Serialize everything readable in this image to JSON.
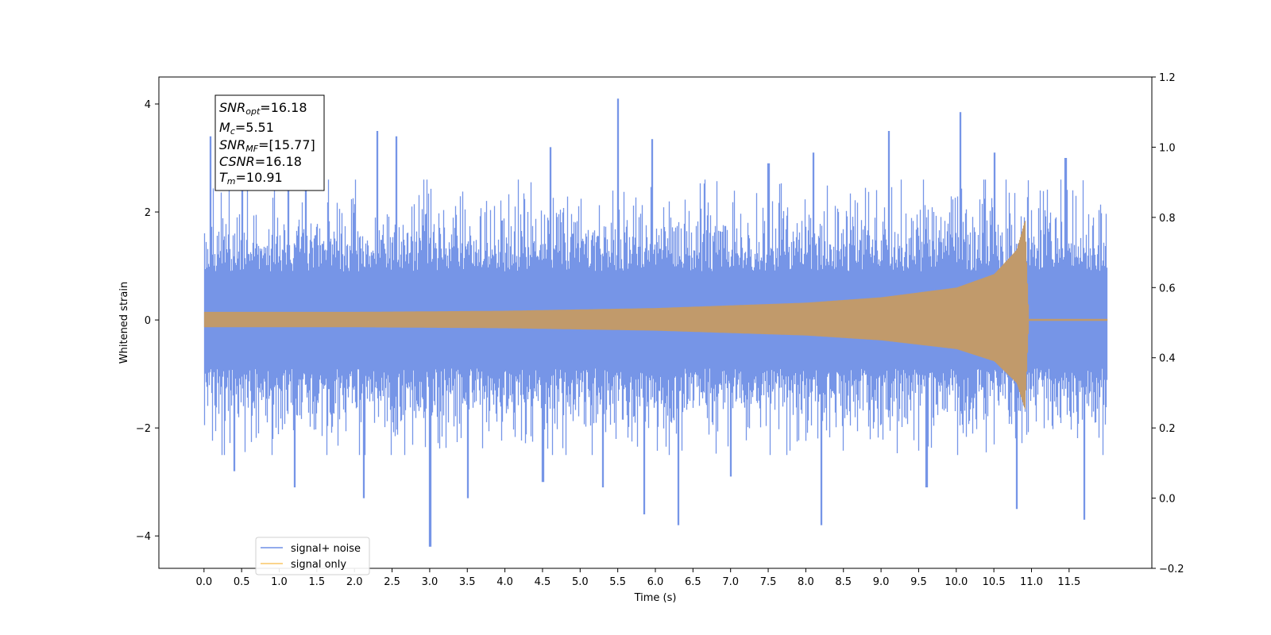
{
  "chart_data": {
    "type": "line",
    "xlabel": "Time (s)",
    "ylabel": "Whitened strain",
    "xlim": [
      -0.6,
      12.6
    ],
    "ylim": [
      -4.6,
      4.5
    ],
    "y2lim": [
      -0.2,
      1.2
    ],
    "xticks": [
      "0.0",
      "0.5",
      "1.0",
      "1.5",
      "2.0",
      "2.5",
      "3.0",
      "3.5",
      "4.0",
      "4.5",
      "5.0",
      "5.5",
      "6.0",
      "6.5",
      "7.0",
      "7.5",
      "8.0",
      "8.5",
      "9.0",
      "9.5",
      "10.0",
      "10.5",
      "11.0",
      "11.5"
    ],
    "yticks": [
      "4",
      "2",
      "0",
      "−2",
      "−4"
    ],
    "y2ticks": [
      "1.2",
      "1.0",
      "0.8",
      "0.6",
      "0.4",
      "0.2",
      "0.0",
      "−0.2"
    ],
    "colors": {
      "noise": "#6f8fe6",
      "signal": "#c19a6b",
      "signal_legend": "#f9c667"
    },
    "series": [
      {
        "name": "signal+ noise",
        "description": "whitened strain, dense noise roughly between -2.5 and 2.5 with peaks up to 4.1 near t=5.5 s and down to -4.2 near t=3.0 s",
        "x_range": [
          0.0,
          12.0
        ],
        "typical_band": [
          -2.2,
          2.3
        ],
        "peaks": [
          {
            "x": 0.08,
            "y": 3.4
          },
          {
            "x": 0.5,
            "y": 2.7
          },
          {
            "x": 1.35,
            "y": 3.1
          },
          {
            "x": 2.3,
            "y": 3.5
          },
          {
            "x": 2.55,
            "y": 3.4
          },
          {
            "x": 4.6,
            "y": 3.2
          },
          {
            "x": 5.5,
            "y": 4.1
          },
          {
            "x": 5.95,
            "y": 3.35
          },
          {
            "x": 7.5,
            "y": 2.9
          },
          {
            "x": 8.1,
            "y": 3.1
          },
          {
            "x": 9.1,
            "y": 3.5
          },
          {
            "x": 10.05,
            "y": 3.85
          },
          {
            "x": 10.5,
            "y": 3.1
          },
          {
            "x": 11.45,
            "y": 3.0
          }
        ],
        "troughs": [
          {
            "x": 0.4,
            "y": -2.8
          },
          {
            "x": 1.2,
            "y": -3.1
          },
          {
            "x": 2.12,
            "y": -3.3
          },
          {
            "x": 3.0,
            "y": -4.2
          },
          {
            "x": 3.5,
            "y": -3.3
          },
          {
            "x": 4.5,
            "y": -3.0
          },
          {
            "x": 5.3,
            "y": -3.1
          },
          {
            "x": 5.85,
            "y": -3.6
          },
          {
            "x": 6.3,
            "y": -3.8
          },
          {
            "x": 7.0,
            "y": -2.9
          },
          {
            "x": 8.2,
            "y": -3.8
          },
          {
            "x": 9.6,
            "y": -3.1
          },
          {
            "x": 10.8,
            "y": -3.5
          },
          {
            "x": 11.7,
            "y": -3.7
          }
        ]
      },
      {
        "name": "signal only",
        "description": "chirp signal with amplitude growing from about 0.15 to about 1.8 at the merger near t=10.91 s, then near zero",
        "x_range": [
          0.0,
          12.0
        ],
        "envelope": [
          {
            "x": 0.0,
            "y": 0.15
          },
          {
            "x": 2.0,
            "y": 0.15
          },
          {
            "x": 4.0,
            "y": 0.17
          },
          {
            "x": 6.0,
            "y": 0.22
          },
          {
            "x": 8.0,
            "y": 0.32
          },
          {
            "x": 9.0,
            "y": 0.42
          },
          {
            "x": 10.0,
            "y": 0.6
          },
          {
            "x": 10.5,
            "y": 0.85
          },
          {
            "x": 10.8,
            "y": 1.3
          },
          {
            "x": 10.91,
            "y": 1.85
          },
          {
            "x": 10.96,
            "y": 0.02
          },
          {
            "x": 12.0,
            "y": 0.02
          }
        ]
      }
    ],
    "legend": {
      "placement": "lower-left",
      "entries": [
        "signal+ noise",
        "signal only"
      ]
    },
    "annotation": {
      "placement": "top-left",
      "lines": [
        {
          "base": "SNR",
          "sub": "opt",
          "value": "=16.18"
        },
        {
          "base": "M",
          "sub": "c",
          "value": "=5.51"
        },
        {
          "base": "SNR",
          "sub": "MF",
          "value": "=[15.77]"
        },
        {
          "base": "CSNR",
          "sub": "",
          "value": "=16.18"
        },
        {
          "base": "T",
          "sub": "m",
          "value": "=10.91"
        }
      ]
    }
  }
}
